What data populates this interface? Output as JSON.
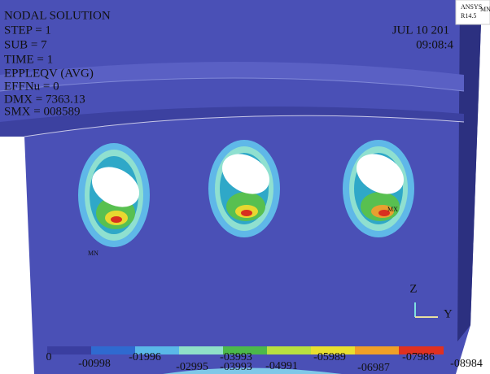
{
  "info": {
    "lines": [
      "NODAL SOLUTION",
      "STEP = 1",
      "SUB = 7",
      "TIME = 1",
      "EPPLEQV (AVG)",
      "EFFNu = 0",
      "DMX = 7363.13",
      "SMX = 008589"
    ],
    "date": "JUL 10 201",
    "time": "09:08:4"
  },
  "logo": {
    "name": "ANSYS",
    "version": "R14.5",
    "mark": "MN"
  },
  "markers": {
    "min": "MN",
    "max": "MX"
  },
  "triad": {
    "z": "Z",
    "y": "Y"
  },
  "legend": {
    "labels": [
      "0",
      "-00998",
      "-01996",
      "-02995",
      "-03993",
      "-03993",
      "-04991",
      "-05989",
      "-06987",
      "-07986",
      "-08984"
    ]
  }
}
